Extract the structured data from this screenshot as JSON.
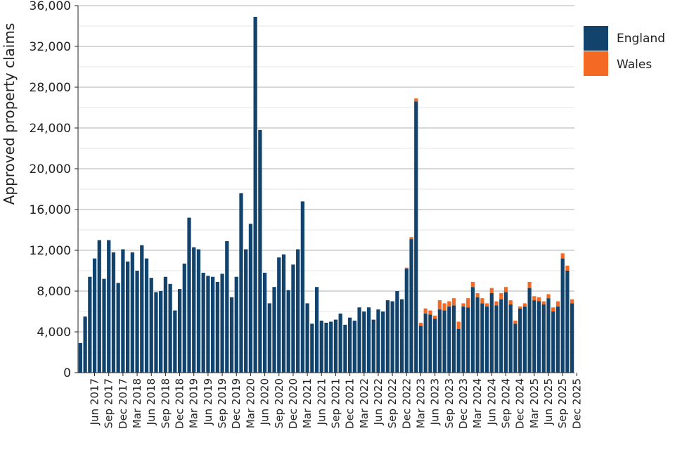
{
  "chart_data": {
    "type": "bar",
    "stacked": true,
    "title": "",
    "xlabel": "",
    "ylabel": "Approved property claims",
    "ylim": [
      0,
      36000
    ],
    "yticks": [
      0,
      4000,
      8000,
      12000,
      16000,
      20000,
      24000,
      28000,
      32000,
      36000
    ],
    "ytick_labels": [
      "0",
      "4,000",
      "8,000",
      "12,000",
      "16,000",
      "20,000",
      "24,000",
      "28,000",
      "32,000",
      "36,000"
    ],
    "grid": true,
    "legend_position": "top-right",
    "xtick_labels": [
      "Jun 2017",
      "Sep 2017",
      "Dec 2017",
      "Mar 2018",
      "Jun 2018",
      "Sep 2018",
      "Dec 2018",
      "Mar 2019",
      "Jun 2019",
      "Sep 2019",
      "Dec 2019",
      "Mar 2020",
      "Jun 2020",
      "Sep 2020",
      "Dec 2020",
      "Mar 2021",
      "Jun 2021",
      "Sep 2021",
      "Dec 2021",
      "Mar 2022",
      "Jun 2022",
      "Sep 2022",
      "Dec 2022",
      "Mar 2023",
      "Jun 2023",
      "Sep 2023",
      "Dec 2023",
      "Mar 2024",
      "Jun 2024",
      "Sep 2024",
      "Dec 2024",
      "Mar 2025",
      "Jun 2025",
      "Sep 2025",
      "Dec 2025"
    ],
    "first_tick_bar_index": 3,
    "tick_every": 3,
    "series": [
      {
        "name": "England",
        "color": "#12436d",
        "values": [
          2900,
          5500,
          9400,
          11200,
          13000,
          9200,
          13000,
          11800,
          8800,
          12100,
          10900,
          11800,
          10000,
          12500,
          11200,
          9300,
          7900,
          8000,
          9400,
          8700,
          6100,
          8200,
          10700,
          15200,
          12300,
          12100,
          9800,
          9500,
          9400,
          8900,
          9700,
          12900,
          7400,
          9400,
          17600,
          12100,
          14600,
          34900,
          23800,
          9800,
          6800,
          8400,
          11300,
          11600,
          8100,
          10600,
          12100,
          16800,
          6800,
          4800,
          8400,
          5100,
          4900,
          5000,
          5200,
          5800,
          4700,
          5400,
          5100,
          6400,
          6000,
          6400,
          5200,
          6200,
          6000,
          7100,
          7000,
          8000,
          7200,
          10200,
          13100,
          26600,
          4600,
          5800,
          5700,
          5300,
          6200,
          6100,
          6500,
          6600,
          4300,
          6500,
          6400,
          8400,
          7400,
          6800,
          6500,
          7800,
          6600,
          7200,
          7900,
          6700,
          4800,
          6300,
          6500,
          8300,
          7100,
          7000,
          6700,
          7300,
          6000,
          6500,
          11200,
          10000,
          6800
        ]
      },
      {
        "name": "Wales",
        "color": "#f46a25",
        "values": [
          0,
          0,
          0,
          0,
          0,
          0,
          0,
          0,
          0,
          0,
          0,
          0,
          0,
          0,
          0,
          0,
          0,
          0,
          0,
          0,
          0,
          0,
          0,
          0,
          0,
          0,
          0,
          0,
          0,
          0,
          0,
          0,
          0,
          0,
          0,
          0,
          0,
          0,
          0,
          0,
          0,
          0,
          0,
          0,
          0,
          0,
          0,
          0,
          0,
          0,
          0,
          0,
          0,
          0,
          0,
          0,
          0,
          0,
          0,
          0,
          0,
          0,
          0,
          0,
          0,
          0,
          0,
          0,
          0,
          100,
          200,
          300,
          300,
          500,
          400,
          300,
          900,
          700,
          500,
          700,
          700,
          300,
          900,
          500,
          400,
          500,
          300,
          500,
          400,
          600,
          500,
          400,
          300,
          200,
          300,
          600,
          400,
          400,
          300,
          400,
          400,
          500,
          500,
          500,
          400
        ]
      }
    ]
  }
}
